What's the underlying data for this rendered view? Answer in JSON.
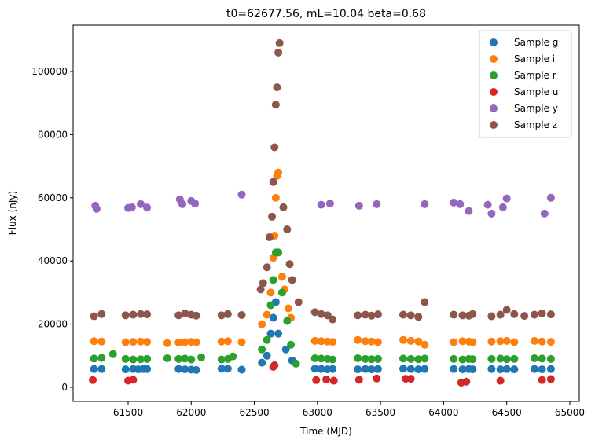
{
  "chart_data": {
    "type": "scatter",
    "title": "t0=62677.56, mL=10.04 beta=0.68",
    "x_label": "Time (MJD)",
    "y_label": "Flux (nJy)",
    "xlim": [
      61064,
      65075
    ],
    "ylim": [
      -4478,
      114677
    ],
    "xticks": [
      61500,
      62000,
      62500,
      63000,
      63500,
      64000,
      64500,
      65000
    ],
    "yticks": [
      0,
      20000,
      40000,
      60000,
      80000,
      100000
    ],
    "legend": "upper right",
    "series": [
      {
        "name": "Sample g",
        "color": "#1f77b4",
        "x": [
          61230,
          61290,
          61480,
          61540,
          61580,
          61620,
          61650,
          61900,
          61950,
          62000,
          62040,
          62240,
          62290,
          62400,
          62560,
          62600,
          62630,
          62650,
          62670,
          62690,
          62750,
          62800,
          62980,
          63030,
          63080,
          63120,
          63320,
          63380,
          63430,
          63480,
          63680,
          63740,
          63800,
          63850,
          64080,
          64150,
          64200,
          64230,
          64380,
          64450,
          64500,
          64560,
          64720,
          64780,
          64850
        ],
        "values": [
          5800,
          5800,
          5700,
          5800,
          5700,
          5800,
          5800,
          5800,
          5700,
          5600,
          5500,
          5900,
          5900,
          5600,
          7800,
          10000,
          17000,
          22000,
          27000,
          17000,
          12000,
          8500,
          5900,
          5800,
          5700,
          5800,
          5700,
          5800,
          5700,
          5800,
          5900,
          5800,
          5700,
          5800,
          5800,
          5700,
          5800,
          5700,
          5800,
          5700,
          5800,
          5700,
          5800,
          5700,
          5800
        ]
      },
      {
        "name": "Sample i",
        "color": "#ff7f0e",
        "x": [
          61230,
          61290,
          61480,
          61540,
          61600,
          61650,
          61810,
          61900,
          61950,
          62000,
          62040,
          62240,
          62290,
          62400,
          62560,
          62600,
          62630,
          62650,
          62660,
          62670,
          62680,
          62690,
          62720,
          62740,
          62770,
          62790,
          62980,
          63030,
          63080,
          63120,
          63320,
          63380,
          63430,
          63480,
          63680,
          63740,
          63800,
          63850,
          64080,
          64150,
          64200,
          64230,
          64380,
          64450,
          64500,
          64560,
          64720,
          64780,
          64850
        ],
        "values": [
          14600,
          14500,
          14300,
          14400,
          14500,
          14400,
          14000,
          14200,
          14300,
          14400,
          14300,
          14500,
          14600,
          14300,
          20000,
          23000,
          30000,
          41000,
          48000,
          60000,
          67000,
          68000,
          35000,
          31000,
          25000,
          22000,
          14700,
          14600,
          14500,
          14400,
          15000,
          14600,
          14500,
          14300,
          15000,
          14700,
          14500,
          13500,
          14300,
          14600,
          14500,
          14300,
          14500,
          14600,
          14700,
          14300,
          14700,
          14500,
          14400
        ]
      },
      {
        "name": "Sample r",
        "color": "#2ca02c",
        "x": [
          61230,
          61290,
          61380,
          61480,
          61540,
          61600,
          61650,
          61810,
          61900,
          61950,
          62000,
          62080,
          62240,
          62290,
          62330,
          62560,
          62600,
          62630,
          62650,
          62670,
          62690,
          62720,
          62760,
          62790,
          62830,
          62980,
          63030,
          63080,
          63120,
          63320,
          63380,
          63430,
          63480,
          63680,
          63740,
          63800,
          63850,
          64080,
          64150,
          64200,
          64230,
          64380,
          64450,
          64500,
          64560,
          64720,
          64780,
          64850
        ],
        "values": [
          9100,
          9300,
          10500,
          9000,
          8800,
          8900,
          9000,
          9200,
          9000,
          9100,
          8800,
          9500,
          8800,
          9000,
          9800,
          12000,
          15000,
          26000,
          34000,
          42700,
          42700,
          30000,
          21000,
          13500,
          7500,
          9200,
          9100,
          9000,
          8800,
          9200,
          9000,
          8900,
          9000,
          9100,
          9000,
          8900,
          9100,
          9000,
          8800,
          9000,
          8900,
          9000,
          9100,
          8900,
          9000,
          9200,
          9100,
          9000
        ]
      },
      {
        "name": "Sample u",
        "color": "#d62728",
        "x": [
          61220,
          61500,
          61540,
          62650,
          62660,
          62990,
          63070,
          63130,
          63330,
          63470,
          63700,
          63740,
          64140,
          64180,
          64450,
          64780,
          64850
        ],
        "values": [
          2300,
          2100,
          2400,
          6500,
          7000,
          2300,
          2500,
          2100,
          2400,
          2800,
          2700,
          2700,
          1500,
          1800,
          2100,
          2300,
          2600
        ]
      },
      {
        "name": "Sample y",
        "color": "#9467bd",
        "x": [
          61240,
          61250,
          61500,
          61530,
          61600,
          61650,
          61910,
          61930,
          62000,
          62030,
          62400,
          63030,
          63100,
          63330,
          63470,
          63850,
          64080,
          64130,
          64200,
          64350,
          64380,
          64470,
          64500,
          64800,
          64850
        ],
        "values": [
          57500,
          56500,
          56800,
          57000,
          58000,
          56900,
          59500,
          58000,
          59000,
          58200,
          61000,
          57800,
          58200,
          57500,
          58000,
          58000,
          58500,
          58000,
          55800,
          57800,
          55000,
          57000,
          59800,
          55000,
          60000
        ]
      },
      {
        "name": "Sample z",
        "color": "#8c564b",
        "x": [
          61230,
          61290,
          61480,
          61540,
          61600,
          61650,
          61900,
          61950,
          62000,
          62040,
          62240,
          62290,
          62400,
          62550,
          62570,
          62600,
          62620,
          62640,
          62650,
          62660,
          62670,
          62680,
          62690,
          62700,
          62730,
          62760,
          62780,
          62800,
          62850,
          62980,
          63030,
          63080,
          63120,
          63320,
          63380,
          63430,
          63480,
          63680,
          63740,
          63800,
          63850,
          64080,
          64150,
          64200,
          64230,
          64380,
          64450,
          64500,
          64560,
          64640,
          64720,
          64780,
          64850
        ],
        "values": [
          22500,
          23200,
          22800,
          23000,
          23200,
          23100,
          22800,
          23400,
          23000,
          22700,
          22800,
          23200,
          22900,
          31000,
          33000,
          38000,
          47500,
          54000,
          65000,
          76000,
          89500,
          95000,
          106000,
          109000,
          57000,
          50000,
          39000,
          34000,
          27000,
          23800,
          23200,
          22800,
          21500,
          22800,
          23000,
          22700,
          23100,
          23000,
          22800,
          22300,
          27000,
          23000,
          22800,
          22700,
          23200,
          22500,
          23000,
          24500,
          23200,
          22600,
          23000,
          23400,
          23100
        ]
      }
    ]
  }
}
